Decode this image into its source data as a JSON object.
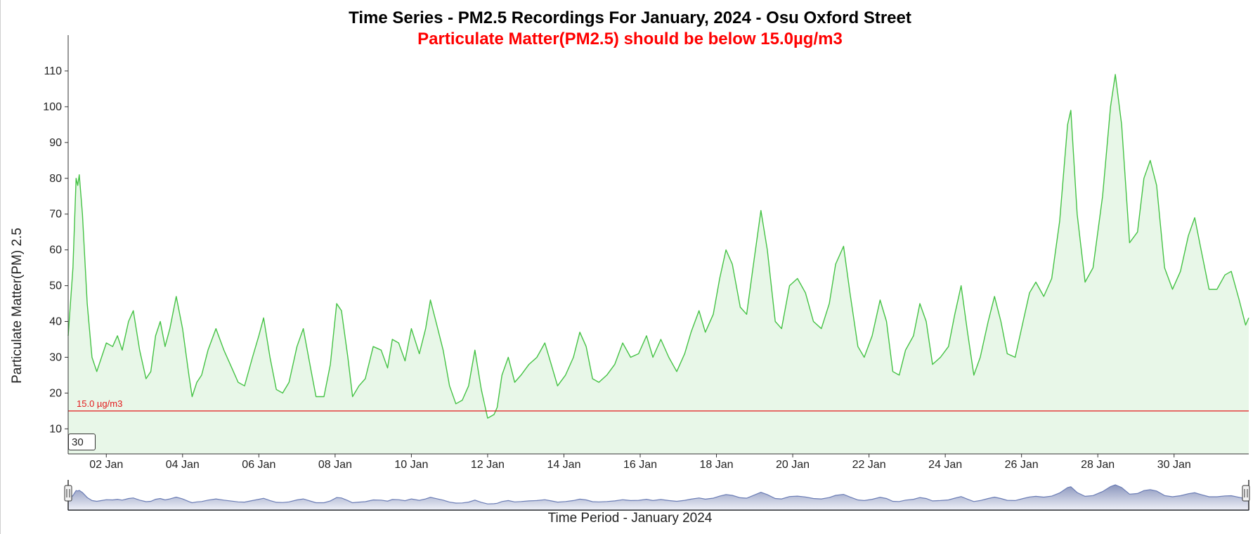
{
  "chart_data": {
    "type": "area",
    "title": "Time Series - PM2.5 Recordings For January, 2024 - Osu Oxford Street",
    "subtitle": "Particulate Matter(PM2.5) should be below 15.0µg/m3",
    "ylabel": "Particulate Matter(PM) 2.5",
    "xlabel": "Time Period - January 2024",
    "x_range": [
      "2024-01-01 00:00",
      "2024-01-31 23:00"
    ],
    "ylim": [
      3,
      120
    ],
    "yticks": [
      10,
      20,
      30,
      40,
      50,
      60,
      70,
      80,
      90,
      100,
      110
    ],
    "xticks": [
      {
        "date": "2024-01-02",
        "label": "02 Jan"
      },
      {
        "date": "2024-01-04",
        "label": "04 Jan"
      },
      {
        "date": "2024-01-06",
        "label": "06 Jan"
      },
      {
        "date": "2024-01-08",
        "label": "08 Jan"
      },
      {
        "date": "2024-01-10",
        "label": "10 Jan"
      },
      {
        "date": "2024-01-12",
        "label": "12 Jan"
      },
      {
        "date": "2024-01-14",
        "label": "14 Jan"
      },
      {
        "date": "2024-01-16",
        "label": "16 Jan"
      },
      {
        "date": "2024-01-18",
        "label": "18 Jan"
      },
      {
        "date": "2024-01-20",
        "label": "20 Jan"
      },
      {
        "date": "2024-01-22",
        "label": "22 Jan"
      },
      {
        "date": "2024-01-24",
        "label": "24 Jan"
      },
      {
        "date": "2024-01-26",
        "label": "26 Jan"
      },
      {
        "date": "2024-01-28",
        "label": "28 Jan"
      },
      {
        "date": "2024-01-30",
        "label": "30 Jan"
      }
    ],
    "threshold": {
      "value": 15.0,
      "label": "15.0 µg/m3",
      "color": "#e31a1c"
    },
    "series": [
      {
        "color": "#44c244",
        "fill": "#e8f7e8",
        "points": [
          [
            "2024-01-01 00:00",
            36
          ],
          [
            "2024-01-01 03:00",
            55
          ],
          [
            "2024-01-01 05:00",
            80
          ],
          [
            "2024-01-01 06:00",
            78
          ],
          [
            "2024-01-01 07:00",
            81
          ],
          [
            "2024-01-01 09:00",
            70
          ],
          [
            "2024-01-01 12:00",
            45
          ],
          [
            "2024-01-01 15:00",
            30
          ],
          [
            "2024-01-01 18:00",
            26
          ],
          [
            "2024-01-01 21:00",
            30
          ],
          [
            "2024-01-02 00:00",
            34
          ],
          [
            "2024-01-02 04:00",
            33
          ],
          [
            "2024-01-02 07:00",
            36
          ],
          [
            "2024-01-02 10:00",
            32
          ],
          [
            "2024-01-02 14:00",
            40
          ],
          [
            "2024-01-02 17:00",
            43
          ],
          [
            "2024-01-02 21:00",
            32
          ],
          [
            "2024-01-03 01:00",
            24
          ],
          [
            "2024-01-03 04:00",
            26
          ],
          [
            "2024-01-03 07:00",
            36
          ],
          [
            "2024-01-03 10:00",
            40
          ],
          [
            "2024-01-03 13:00",
            33
          ],
          [
            "2024-01-03 16:00",
            38
          ],
          [
            "2024-01-03 20:00",
            47
          ],
          [
            "2024-01-04 00:00",
            38
          ],
          [
            "2024-01-04 04:00",
            25
          ],
          [
            "2024-01-04 06:00",
            19
          ],
          [
            "2024-01-04 09:00",
            23
          ],
          [
            "2024-01-04 12:00",
            25
          ],
          [
            "2024-01-04 16:00",
            32
          ],
          [
            "2024-01-04 21:00",
            38
          ],
          [
            "2024-01-05 02:00",
            32
          ],
          [
            "2024-01-05 07:00",
            27
          ],
          [
            "2024-01-05 11:00",
            23
          ],
          [
            "2024-01-05 15:00",
            22
          ],
          [
            "2024-01-05 20:00",
            30
          ],
          [
            "2024-01-06 00:00",
            36
          ],
          [
            "2024-01-06 03:00",
            41
          ],
          [
            "2024-01-06 07:00",
            30
          ],
          [
            "2024-01-06 11:00",
            21
          ],
          [
            "2024-01-06 15:00",
            20
          ],
          [
            "2024-01-06 19:00",
            23
          ],
          [
            "2024-01-07 00:00",
            33
          ],
          [
            "2024-01-07 04:00",
            38
          ],
          [
            "2024-01-07 09:00",
            26
          ],
          [
            "2024-01-07 12:00",
            19
          ],
          [
            "2024-01-07 17:00",
            19
          ],
          [
            "2024-01-07 21:00",
            28
          ],
          [
            "2024-01-08 01:00",
            45
          ],
          [
            "2024-01-08 04:00",
            43
          ],
          [
            "2024-01-08 08:00",
            30
          ],
          [
            "2024-01-08 11:00",
            19
          ],
          [
            "2024-01-08 15:00",
            22
          ],
          [
            "2024-01-08 19:00",
            24
          ],
          [
            "2024-01-09 00:00",
            33
          ],
          [
            "2024-01-09 05:00",
            32
          ],
          [
            "2024-01-09 09:00",
            27
          ],
          [
            "2024-01-09 12:00",
            35
          ],
          [
            "2024-01-09 16:00",
            34
          ],
          [
            "2024-01-09 20:00",
            29
          ],
          [
            "2024-01-10 00:00",
            38
          ],
          [
            "2024-01-10 05:00",
            31
          ],
          [
            "2024-01-10 09:00",
            38
          ],
          [
            "2024-01-10 12:00",
            46
          ],
          [
            "2024-01-10 16:00",
            39
          ],
          [
            "2024-01-10 20:00",
            32
          ],
          [
            "2024-01-11 00:00",
            22
          ],
          [
            "2024-01-11 04:00",
            17
          ],
          [
            "2024-01-11 08:00",
            18
          ],
          [
            "2024-01-11 12:00",
            22
          ],
          [
            "2024-01-11 16:00",
            32
          ],
          [
            "2024-01-11 20:00",
            21
          ],
          [
            "2024-01-12 00:00",
            13
          ],
          [
            "2024-01-12 04:00",
            14
          ],
          [
            "2024-01-12 06:00",
            16
          ],
          [
            "2024-01-12 09:00",
            25
          ],
          [
            "2024-01-12 13:00",
            30
          ],
          [
            "2024-01-12 17:00",
            23
          ],
          [
            "2024-01-12 21:00",
            25
          ],
          [
            "2024-01-13 02:00",
            28
          ],
          [
            "2024-01-13 07:00",
            30
          ],
          [
            "2024-01-13 12:00",
            34
          ],
          [
            "2024-01-13 16:00",
            28
          ],
          [
            "2024-01-13 20:00",
            22
          ],
          [
            "2024-01-14 01:00",
            25
          ],
          [
            "2024-01-14 06:00",
            30
          ],
          [
            "2024-01-14 10:00",
            37
          ],
          [
            "2024-01-14 14:00",
            33
          ],
          [
            "2024-01-14 18:00",
            24
          ],
          [
            "2024-01-14 22:00",
            23
          ],
          [
            "2024-01-15 03:00",
            25
          ],
          [
            "2024-01-15 08:00",
            28
          ],
          [
            "2024-01-15 13:00",
            34
          ],
          [
            "2024-01-15 18:00",
            30
          ],
          [
            "2024-01-15 23:00",
            31
          ],
          [
            "2024-01-16 04:00",
            36
          ],
          [
            "2024-01-16 08:00",
            30
          ],
          [
            "2024-01-16 13:00",
            35
          ],
          [
            "2024-01-16 18:00",
            30
          ],
          [
            "2024-01-16 23:00",
            26
          ],
          [
            "2024-01-17 04:00",
            31
          ],
          [
            "2024-01-17 08:00",
            37
          ],
          [
            "2024-01-17 13:00",
            43
          ],
          [
            "2024-01-17 17:00",
            37
          ],
          [
            "2024-01-17 22:00",
            42
          ],
          [
            "2024-01-18 02:00",
            52
          ],
          [
            "2024-01-18 06:00",
            60
          ],
          [
            "2024-01-18 10:00",
            56
          ],
          [
            "2024-01-18 15:00",
            44
          ],
          [
            "2024-01-18 19:00",
            42
          ],
          [
            "2024-01-18 23:00",
            55
          ],
          [
            "2024-01-19 04:00",
            71
          ],
          [
            "2024-01-19 08:00",
            60
          ],
          [
            "2024-01-19 13:00",
            40
          ],
          [
            "2024-01-19 17:00",
            38
          ],
          [
            "2024-01-19 22:00",
            50
          ],
          [
            "2024-01-20 03:00",
            52
          ],
          [
            "2024-01-20 08:00",
            48
          ],
          [
            "2024-01-20 13:00",
            40
          ],
          [
            "2024-01-20 18:00",
            38
          ],
          [
            "2024-01-20 23:00",
            45
          ],
          [
            "2024-01-21 03:00",
            56
          ],
          [
            "2024-01-21 08:00",
            61
          ],
          [
            "2024-01-21 12:00",
            48
          ],
          [
            "2024-01-21 17:00",
            33
          ],
          [
            "2024-01-21 21:00",
            30
          ],
          [
            "2024-01-22 02:00",
            36
          ],
          [
            "2024-01-22 07:00",
            46
          ],
          [
            "2024-01-22 11:00",
            40
          ],
          [
            "2024-01-22 15:00",
            26
          ],
          [
            "2024-01-22 19:00",
            25
          ],
          [
            "2024-01-22 23:00",
            32
          ],
          [
            "2024-01-23 04:00",
            36
          ],
          [
            "2024-01-23 08:00",
            45
          ],
          [
            "2024-01-23 12:00",
            40
          ],
          [
            "2024-01-23 16:00",
            28
          ],
          [
            "2024-01-23 21:00",
            30
          ],
          [
            "2024-01-24 02:00",
            33
          ],
          [
            "2024-01-24 06:00",
            42
          ],
          [
            "2024-01-24 10:00",
            50
          ],
          [
            "2024-01-24 14:00",
            37
          ],
          [
            "2024-01-24 18:00",
            25
          ],
          [
            "2024-01-24 22:00",
            30
          ],
          [
            "2024-01-25 03:00",
            40
          ],
          [
            "2024-01-25 07:00",
            47
          ],
          [
            "2024-01-25 11:00",
            40
          ],
          [
            "2024-01-25 15:00",
            31
          ],
          [
            "2024-01-25 20:00",
            30
          ],
          [
            "2024-01-26 01:00",
            40
          ],
          [
            "2024-01-26 05:00",
            48
          ],
          [
            "2024-01-26 09:00",
            51
          ],
          [
            "2024-01-26 14:00",
            47
          ],
          [
            "2024-01-26 19:00",
            52
          ],
          [
            "2024-01-27 00:00",
            68
          ],
          [
            "2024-01-27 05:00",
            95
          ],
          [
            "2024-01-27 07:00",
            99
          ],
          [
            "2024-01-27 11:00",
            70
          ],
          [
            "2024-01-27 16:00",
            51
          ],
          [
            "2024-01-27 21:00",
            55
          ],
          [
            "2024-01-28 03:00",
            75
          ],
          [
            "2024-01-28 08:00",
            100
          ],
          [
            "2024-01-28 11:00",
            109
          ],
          [
            "2024-01-28 15:00",
            95
          ],
          [
            "2024-01-28 20:00",
            62
          ],
          [
            "2024-01-29 01:00",
            65
          ],
          [
            "2024-01-29 05:00",
            80
          ],
          [
            "2024-01-29 09:00",
            85
          ],
          [
            "2024-01-29 13:00",
            78
          ],
          [
            "2024-01-29 18:00",
            55
          ],
          [
            "2024-01-29 23:00",
            49
          ],
          [
            "2024-01-30 04:00",
            54
          ],
          [
            "2024-01-30 09:00",
            64
          ],
          [
            "2024-01-30 13:00",
            69
          ],
          [
            "2024-01-30 17:00",
            60
          ],
          [
            "2024-01-30 22:00",
            49
          ],
          [
            "2024-01-31 03:00",
            49
          ],
          [
            "2024-01-31 08:00",
            53
          ],
          [
            "2024-01-31 12:00",
            54
          ],
          [
            "2024-01-31 17:00",
            46
          ],
          [
            "2024-01-31 21:00",
            39
          ],
          [
            "2024-01-31 23:00",
            41
          ]
        ]
      }
    ],
    "grid": false,
    "navigator": {
      "type": "area",
      "color": "#6a7cb5",
      "handles": true
    }
  },
  "rolling_window": "30"
}
